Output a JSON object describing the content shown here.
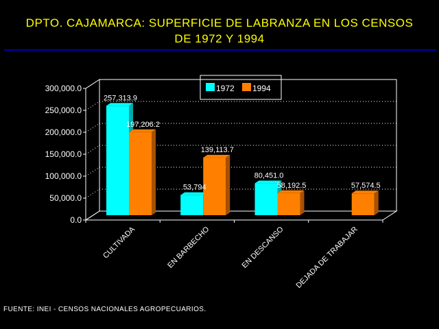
{
  "title": {
    "line1": "DPTO. CAJAMARCA: SUPERFICIE DE LABRANZA EN LOS CENSOS",
    "line2": "DE 1972 Y 1994"
  },
  "source": "FUENTE: INEI - CENSOS NACIONALES AGROPECUARIOS.",
  "colors": {
    "background": "#000000",
    "title": "#ffff00",
    "rule": "#0000a8",
    "series_1972": "#00ffff",
    "series_1994": "#ff8000",
    "text": "#ffffff"
  },
  "chart_data": {
    "type": "bar",
    "categories": [
      "CULTIVADA",
      "EN BARBECHO",
      "EN DESCANSO",
      "DEJADA DE TRABAJAR"
    ],
    "series": [
      {
        "name": "1972",
        "values": [
          257313.9,
          53794,
          80451.0,
          null
        ],
        "labels": [
          "257,313.9",
          "53,794",
          "80,451.0",
          ""
        ]
      },
      {
        "name": "1994",
        "values": [
          197206.2,
          139113.7,
          58192.5,
          57574.5
        ],
        "labels": [
          "197,206.2",
          "139,113.7",
          "58,192.5",
          "57,574.5"
        ]
      }
    ],
    "y_ticks": [
      "0.0",
      "50,000.0",
      "100,000.0",
      "150,000.0",
      "200,000.0",
      "250,000.0",
      "300,000.0"
    ],
    "ylim": [
      0,
      300000
    ],
    "grid": true,
    "legend_position": "top-center"
  }
}
